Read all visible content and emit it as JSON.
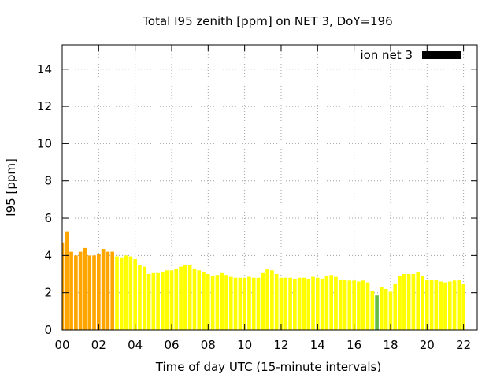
{
  "chart_data": {
    "type": "bar",
    "title": "Total I95 zenith [ppm] on NET 3, DoY=196",
    "xlabel": "Time of day UTC (15-minute intervals)",
    "ylabel": "I95 [ppm]",
    "xlim": [
      0,
      22.75
    ],
    "ylim": [
      0,
      15.3
    ],
    "x_ticks": [
      "00",
      "02",
      "04",
      "06",
      "08",
      "10",
      "12",
      "14",
      "16",
      "18",
      "20",
      "22"
    ],
    "x_tick_values": [
      0,
      2,
      4,
      6,
      8,
      10,
      12,
      14,
      16,
      18,
      20,
      22
    ],
    "y_ticks": [
      0,
      2,
      4,
      6,
      8,
      10,
      12,
      14
    ],
    "grid": true,
    "legend": {
      "position": "top-right",
      "label": "ion net 3",
      "color": "#000000"
    },
    "bar_step_hours": 0.25,
    "colors": {
      "orange": "#ffa500",
      "yellow": "#ffff00",
      "green": "#66bb44"
    },
    "series": [
      {
        "values": [
          4.7,
          5.3,
          4.2,
          4.0,
          4.2,
          4.4,
          4.0,
          4.0,
          4.1,
          4.35,
          4.2,
          4.2,
          3.95,
          3.9,
          4.0,
          3.95,
          3.8,
          3.5,
          3.4,
          3.0,
          3.05,
          3.05,
          3.1,
          3.2,
          3.2,
          3.3,
          3.4,
          3.5,
          3.5,
          3.3,
          3.2,
          3.1,
          3.0,
          2.9,
          2.95,
          3.05,
          2.95,
          2.85,
          2.8,
          2.8,
          2.8,
          2.85,
          2.8,
          2.8,
          3.05,
          3.25,
          3.2,
          3.0,
          2.8,
          2.8,
          2.8,
          2.75,
          2.8,
          2.8,
          2.75,
          2.85,
          2.8,
          2.75,
          2.9,
          2.95,
          2.85,
          2.7,
          2.7,
          2.65,
          2.65,
          2.6,
          2.65,
          2.55,
          2.1,
          1.85,
          2.3,
          2.2,
          2.05,
          2.5,
          2.9,
          3.0,
          3.0,
          3.0,
          3.1,
          2.9,
          2.7,
          2.7,
          2.7,
          2.6,
          2.55,
          2.6,
          2.65,
          2.7,
          2.45
        ],
        "bar_colors": [
          "orange",
          "orange",
          "orange",
          "orange",
          "orange",
          "orange",
          "orange",
          "orange",
          "orange",
          "orange",
          "orange",
          "orange",
          "yellow",
          "yellow",
          "yellow",
          "yellow",
          "yellow",
          "yellow",
          "yellow",
          "yellow",
          "yellow",
          "yellow",
          "yellow",
          "yellow",
          "yellow",
          "yellow",
          "yellow",
          "yellow",
          "yellow",
          "yellow",
          "yellow",
          "yellow",
          "yellow",
          "yellow",
          "yellow",
          "yellow",
          "yellow",
          "yellow",
          "yellow",
          "yellow",
          "yellow",
          "yellow",
          "yellow",
          "yellow",
          "yellow",
          "yellow",
          "yellow",
          "yellow",
          "yellow",
          "yellow",
          "yellow",
          "yellow",
          "yellow",
          "yellow",
          "yellow",
          "yellow",
          "yellow",
          "yellow",
          "yellow",
          "yellow",
          "yellow",
          "yellow",
          "yellow",
          "yellow",
          "yellow",
          "yellow",
          "yellow",
          "yellow",
          "yellow",
          "green",
          "yellow",
          "yellow",
          "yellow",
          "yellow",
          "yellow",
          "yellow",
          "yellow",
          "yellow",
          "yellow",
          "yellow",
          "yellow",
          "yellow",
          "yellow",
          "yellow",
          "yellow",
          "yellow",
          "yellow",
          "yellow",
          "yellow"
        ]
      }
    ]
  }
}
